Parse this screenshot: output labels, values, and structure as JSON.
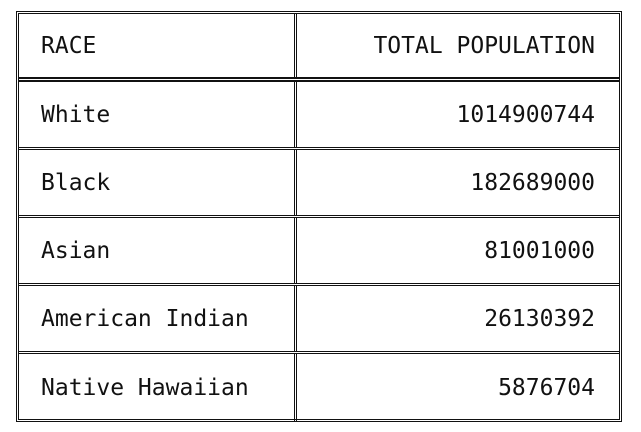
{
  "table": {
    "columns": [
      "RACE",
      "TOTAL POPULATION"
    ],
    "rows": [
      {
        "race": "White",
        "total_population": "1014900744"
      },
      {
        "race": "Black",
        "total_population": "182689000"
      },
      {
        "race": "Asian",
        "total_population": "81001000"
      },
      {
        "race": "American Indian",
        "total_population": "26130392"
      },
      {
        "race": "Native Hawaiian",
        "total_population": "5876704"
      }
    ]
  }
}
